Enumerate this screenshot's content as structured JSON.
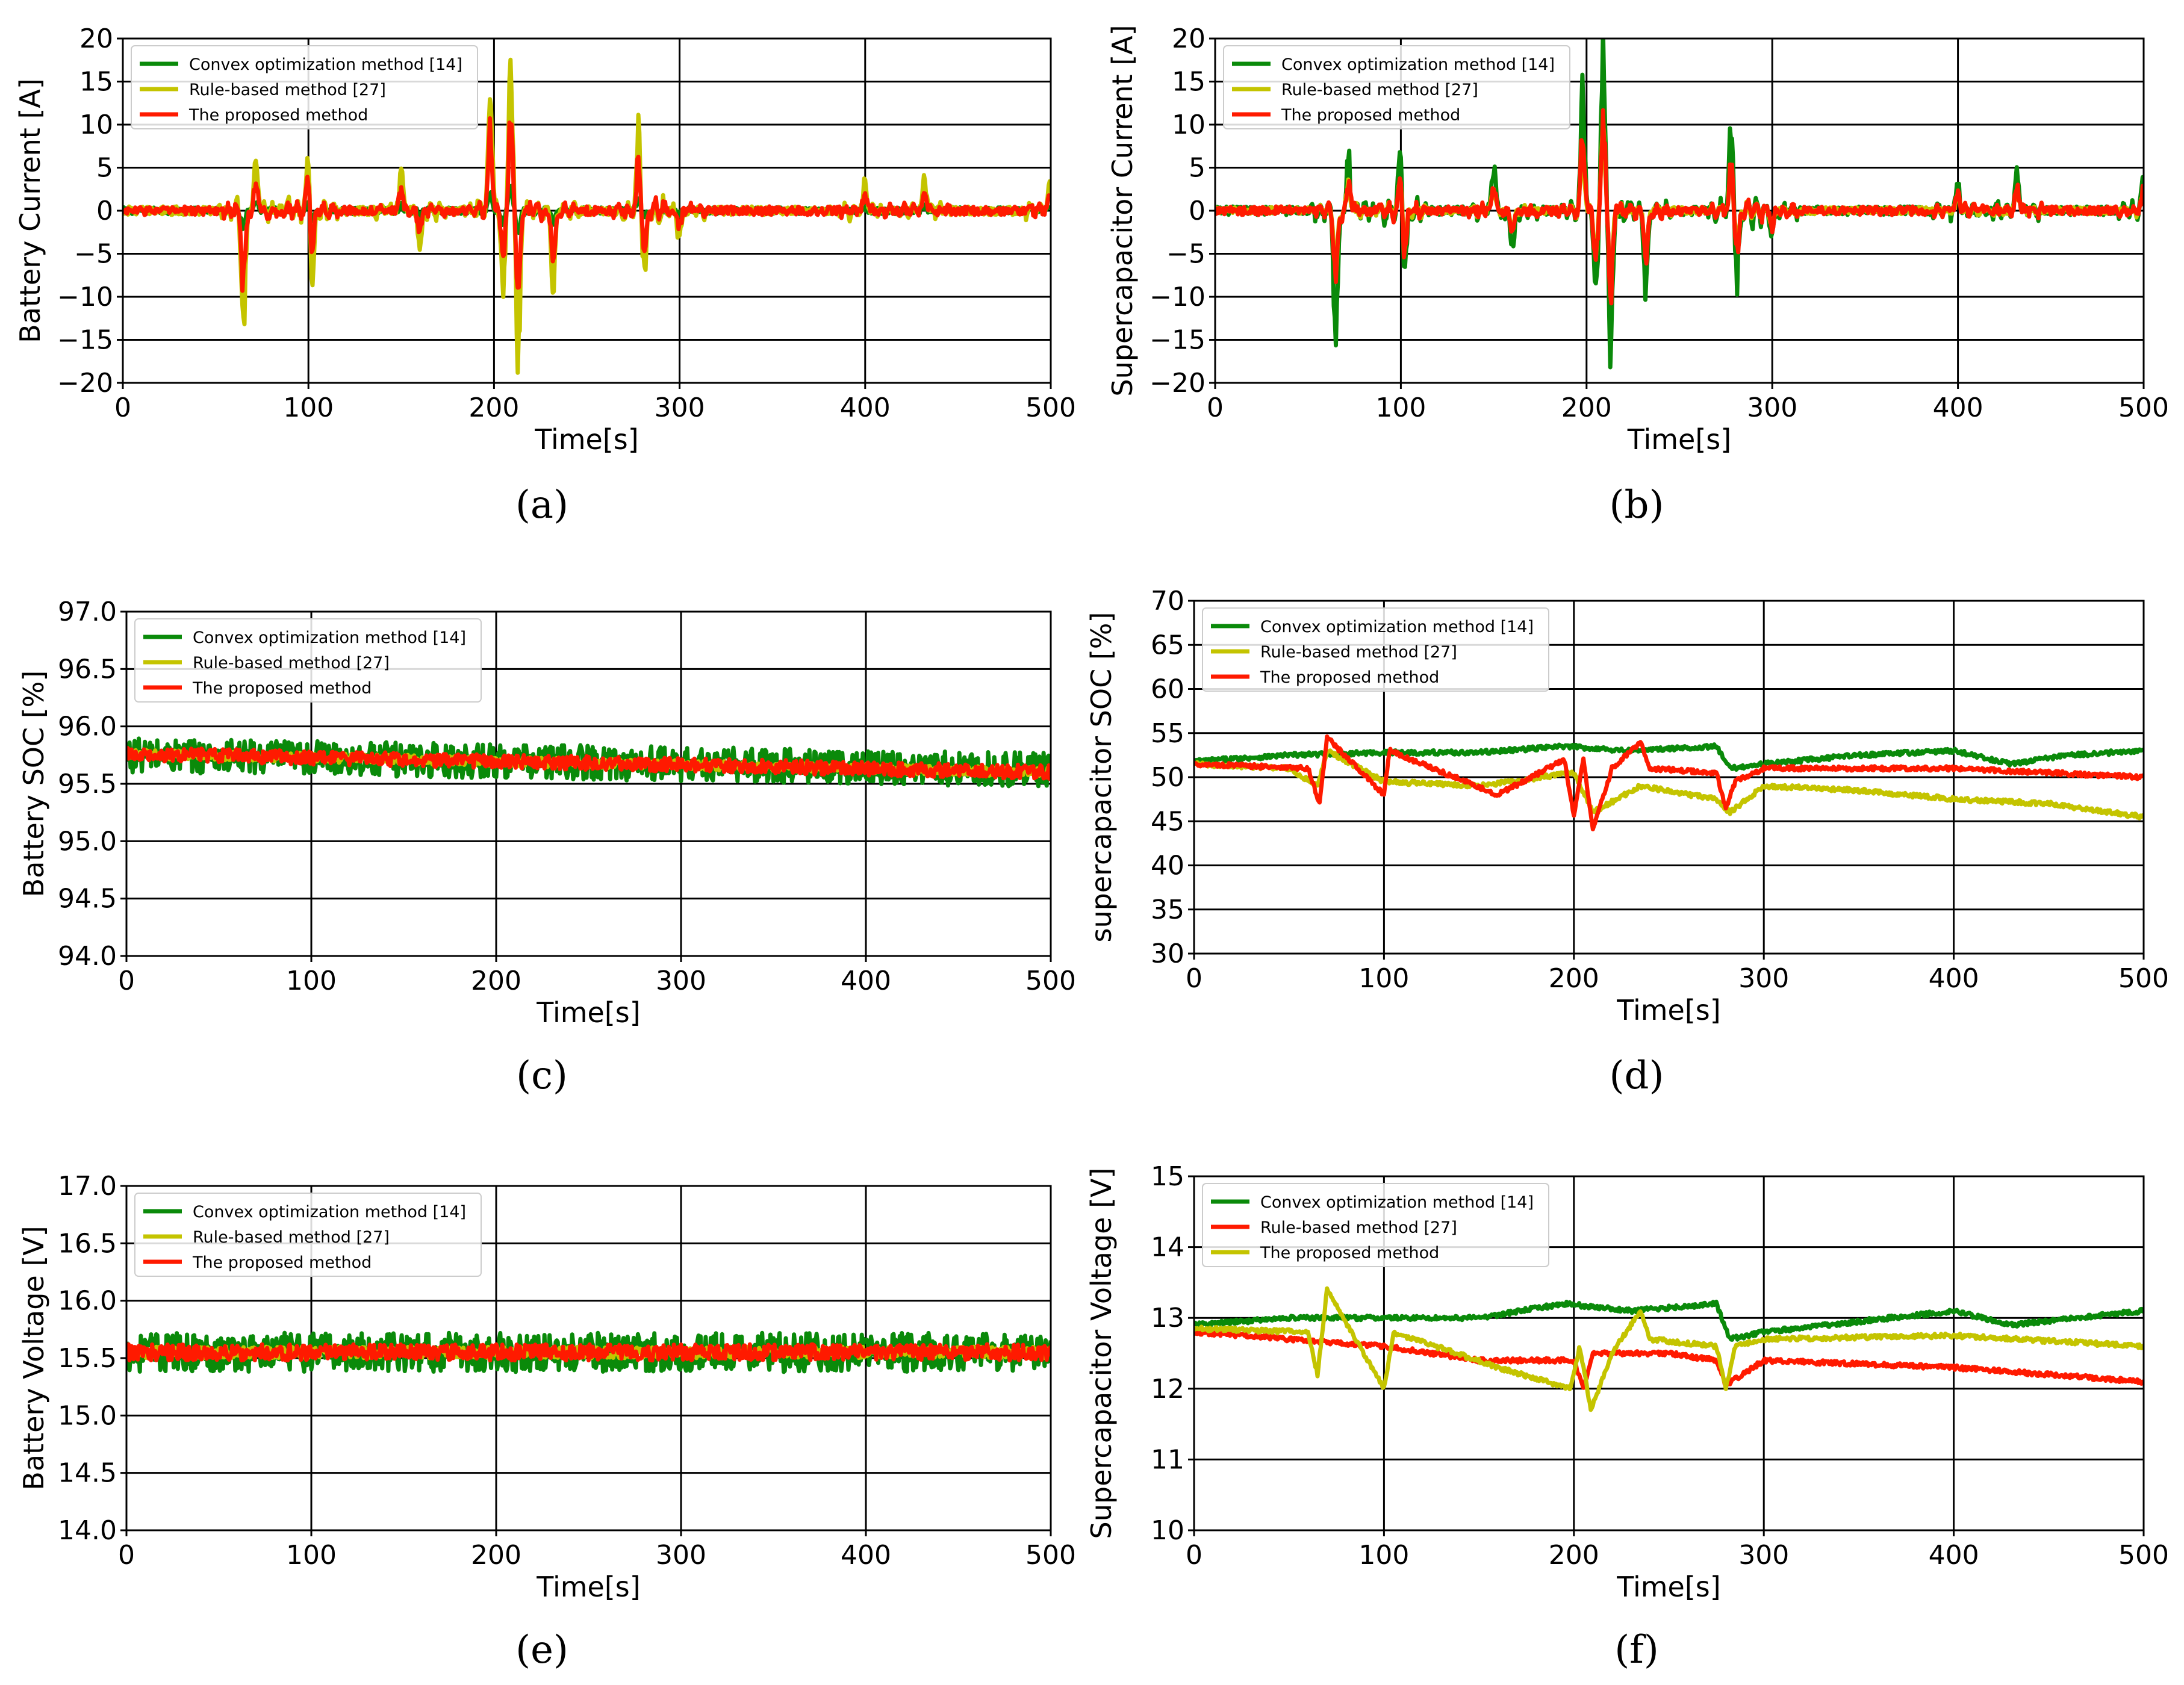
{
  "colors": {
    "convex": "#0a8a0a",
    "rule": "#c4c400",
    "proposed": "#ff1a00",
    "grid": "#000000"
  },
  "chart_data": [
    {
      "id": "a",
      "type": "line",
      "caption": "(a)",
      "title": "",
      "xlabel": "Time[s]",
      "ylabel": "Battery Current [A]",
      "xlim": [
        0,
        500
      ],
      "ylim": [
        -20,
        20
      ],
      "xticks": [
        "0",
        "100",
        "200",
        "300",
        "400",
        "500"
      ],
      "yticks": [
        "20",
        "15",
        "10",
        "5",
        "0",
        "−5",
        "−10",
        "−15",
        "−20"
      ],
      "grid": true,
      "legend": "top-left",
      "series": [
        {
          "name": "Convex optimization method [14]",
          "color_key": "convex",
          "amp": 0.4,
          "peak_scale": 0.15
        },
        {
          "name": "Rule-based method [27]",
          "color_key": "rule",
          "amp": 0.5,
          "peak_scale": 1.0
        },
        {
          "name": "The proposed method",
          "color_key": "proposed",
          "amp": 0.5,
          "peak_scale": 0.6
        }
      ],
      "events": [
        [
          65,
          -14
        ],
        [
          72,
          6
        ],
        [
          100,
          7
        ],
        [
          102,
          -9
        ],
        [
          150,
          5
        ],
        [
          160,
          -4
        ],
        [
          198,
          14
        ],
        [
          205,
          -9
        ],
        [
          209,
          18
        ],
        [
          213,
          -17
        ],
        [
          232,
          -9
        ],
        [
          278,
          9
        ],
        [
          281,
          -8
        ],
        [
          300,
          -3
        ],
        [
          400,
          3
        ],
        [
          432,
          4
        ],
        [
          500,
          4
        ]
      ]
    },
    {
      "id": "b",
      "type": "line",
      "caption": "(b)",
      "title": "",
      "xlabel": "Time[s]",
      "ylabel": "Supercapacitor Current [A]",
      "xlim": [
        0,
        500
      ],
      "ylim": [
        -20,
        20
      ],
      "xticks": [
        "0",
        "100",
        "200",
        "300",
        "400",
        "500"
      ],
      "yticks": [
        "20",
        "15",
        "10",
        "5",
        "0",
        "−5",
        "−10",
        "−15",
        "−20"
      ],
      "grid": true,
      "legend": "top-left",
      "series": [
        {
          "name": "Convex optimization method [14]",
          "color_key": "convex",
          "amp": 0.5,
          "peak_scale": 1.0
        },
        {
          "name": "Rule-based method [27]",
          "color_key": "rule",
          "amp": 0.4,
          "peak_scale": 0.5
        },
        {
          "name": "The proposed method",
          "color_key": "proposed",
          "amp": 0.5,
          "peak_scale": 0.6
        }
      ],
      "events": [
        [
          65,
          -14
        ],
        [
          72,
          6
        ],
        [
          100,
          7
        ],
        [
          102,
          -9
        ],
        [
          150,
          5
        ],
        [
          160,
          -4
        ],
        [
          198,
          14
        ],
        [
          205,
          -9
        ],
        [
          209,
          18
        ],
        [
          213,
          -17
        ],
        [
          232,
          -9
        ],
        [
          278,
          9
        ],
        [
          281,
          -8
        ],
        [
          300,
          -3
        ],
        [
          400,
          3
        ],
        [
          432,
          4
        ],
        [
          500,
          4
        ]
      ]
    },
    {
      "id": "c",
      "type": "line",
      "caption": "(c)",
      "title": "",
      "xlabel": "Time[s]",
      "ylabel": "Battery SOC [%]",
      "xlim": [
        0,
        500
      ],
      "ylim": [
        94.0,
        97.0
      ],
      "xticks": [
        "0",
        "100",
        "200",
        "300",
        "400",
        "500"
      ],
      "yticks": [
        "97.0",
        "96.5",
        "96.0",
        "95.5",
        "95.0",
        "94.5",
        "94.0"
      ],
      "grid": true,
      "legend": "top-left",
      "series": [
        {
          "name": "Convex optimization method [14]",
          "color_key": "convex",
          "start": 95.75,
          "end": 95.62,
          "amp": 0.15
        },
        {
          "name": "Rule-based method [27]",
          "color_key": "rule",
          "start": 95.76,
          "end": 95.6,
          "amp": 0.04
        },
        {
          "name": "The proposed method",
          "color_key": "proposed",
          "start": 95.76,
          "end": 95.6,
          "amp": 0.06
        }
      ]
    },
    {
      "id": "d",
      "type": "line",
      "caption": "(d)",
      "title": "",
      "xlabel": "Time[s]",
      "ylabel": "supercapacitor SOC [%]",
      "xlim": [
        0,
        500
      ],
      "ylim": [
        30,
        70
      ],
      "xticks": [
        "0",
        "100",
        "200",
        "300",
        "400",
        "500"
      ],
      "yticks": [
        "70",
        "65",
        "60",
        "55",
        "50",
        "45",
        "40",
        "35",
        "30"
      ],
      "grid": true,
      "legend": "top-left",
      "series": [
        {
          "name": "Convex optimization method [14]",
          "color_key": "convex",
          "points": [
            [
              0,
              51.8
            ],
            [
              50,
              52.5
            ],
            [
              100,
              52.8
            ],
            [
              150,
              52.8
            ],
            [
              195,
              53.5
            ],
            [
              230,
              53
            ],
            [
              275,
              53.5
            ],
            [
              282,
              51
            ],
            [
              300,
              51.5
            ],
            [
              350,
              52.5
            ],
            [
              400,
              53
            ],
            [
              430,
              51.5
            ],
            [
              460,
              52.5
            ],
            [
              500,
              53
            ]
          ]
        },
        {
          "name": "Rule-based method [27]",
          "color_key": "rule",
          "points": [
            [
              0,
              51.5
            ],
            [
              50,
              51
            ],
            [
              65,
              49
            ],
            [
              70,
              53
            ],
            [
              100,
              49.5
            ],
            [
              150,
              49
            ],
            [
              200,
              50.5
            ],
            [
              210,
              46
            ],
            [
              235,
              49
            ],
            [
              275,
              47.5
            ],
            [
              282,
              46
            ],
            [
              300,
              49
            ],
            [
              350,
              48.5
            ],
            [
              400,
              47.5
            ],
            [
              450,
              47
            ],
            [
              500,
              45.5
            ]
          ]
        },
        {
          "name": "The proposed method",
          "color_key": "proposed",
          "points": [
            [
              0,
              51.5
            ],
            [
              60,
              51
            ],
            [
              66,
              47
            ],
            [
              70,
              54.5
            ],
            [
              100,
              48
            ],
            [
              103,
              53
            ],
            [
              160,
              48
            ],
            [
              195,
              52
            ],
            [
              200,
              45.5
            ],
            [
              205,
              52
            ],
            [
              210,
              44
            ],
            [
              220,
              51
            ],
            [
              235,
              54
            ],
            [
              240,
              51
            ],
            [
              275,
              50.5
            ],
            [
              280,
              46.5
            ],
            [
              285,
              49.5
            ],
            [
              300,
              51
            ],
            [
              400,
              51
            ],
            [
              500,
              50
            ]
          ]
        }
      ]
    },
    {
      "id": "e",
      "type": "line",
      "caption": "(e)",
      "title": "",
      "xlabel": "Time[s]",
      "ylabel": "Battery Voltage [V]",
      "xlim": [
        0,
        500
      ],
      "ylim": [
        14.0,
        17.0
      ],
      "xticks": [
        "0",
        "100",
        "200",
        "300",
        "400",
        "500"
      ],
      "yticks": [
        "17.0",
        "16.5",
        "16.0",
        "15.5",
        "15.0",
        "14.5",
        "14.0"
      ],
      "grid": true,
      "legend": "top-left",
      "series": [
        {
          "name": "Convex optimization method [14]",
          "color_key": "convex",
          "start": 15.55,
          "end": 15.55,
          "amp": 0.17
        },
        {
          "name": "Rule-based method [27]",
          "color_key": "rule",
          "start": 15.55,
          "end": 15.55,
          "amp": 0.05
        },
        {
          "name": "The proposed method",
          "color_key": "proposed",
          "start": 15.55,
          "end": 15.55,
          "amp": 0.07
        }
      ]
    },
    {
      "id": "f",
      "type": "line",
      "caption": "(f)",
      "title": "",
      "xlabel": "Time[s]",
      "ylabel": "Supercapacitor Voltage [V]",
      "xlim": [
        0,
        500
      ],
      "ylim": [
        10,
        15
      ],
      "xticks": [
        "0",
        "100",
        "200",
        "300",
        "400",
        "500"
      ],
      "yticks": [
        "15",
        "14",
        "13",
        "12",
        "11",
        "10"
      ],
      "grid": true,
      "legend": "top-left",
      "series": [
        {
          "name": "Convex optimization method [14]",
          "color_key": "convex",
          "points": [
            [
              0,
              12.9
            ],
            [
              50,
              13.0
            ],
            [
              100,
              13.0
            ],
            [
              150,
              13.0
            ],
            [
              195,
              13.2
            ],
            [
              230,
              13.1
            ],
            [
              275,
              13.2
            ],
            [
              282,
              12.7
            ],
            [
              300,
              12.8
            ],
            [
              400,
              13.1
            ],
            [
              430,
              12.9
            ],
            [
              500,
              13.1
            ]
          ]
        },
        {
          "name": "Rule-based method [27]",
          "color_key": "proposed",
          "points": [
            [
              0,
              12.8
            ],
            [
              50,
              12.7
            ],
            [
              100,
              12.6
            ],
            [
              150,
              12.4
            ],
            [
              200,
              12.4
            ],
            [
              205,
              12.0
            ],
            [
              210,
              12.5
            ],
            [
              250,
              12.5
            ],
            [
              275,
              12.4
            ],
            [
              280,
              12.05
            ],
            [
              300,
              12.4
            ],
            [
              400,
              12.3
            ],
            [
              450,
              12.2
            ],
            [
              500,
              12.1
            ]
          ]
        },
        {
          "name": "The proposed method",
          "color_key": "rule",
          "points": [
            [
              0,
              12.85
            ],
            [
              60,
              12.8
            ],
            [
              65,
              12.2
            ],
            [
              70,
              13.4
            ],
            [
              100,
              12.0
            ],
            [
              105,
              12.8
            ],
            [
              160,
              12.3
            ],
            [
              198,
              12.0
            ],
            [
              203,
              12.6
            ],
            [
              209,
              11.7
            ],
            [
              220,
              12.5
            ],
            [
              235,
              13.1
            ],
            [
              240,
              12.7
            ],
            [
              275,
              12.6
            ],
            [
              280,
              12.0
            ],
            [
              285,
              12.6
            ],
            [
              300,
              12.7
            ],
            [
              400,
              12.75
            ],
            [
              500,
              12.6
            ]
          ]
        }
      ]
    }
  ]
}
